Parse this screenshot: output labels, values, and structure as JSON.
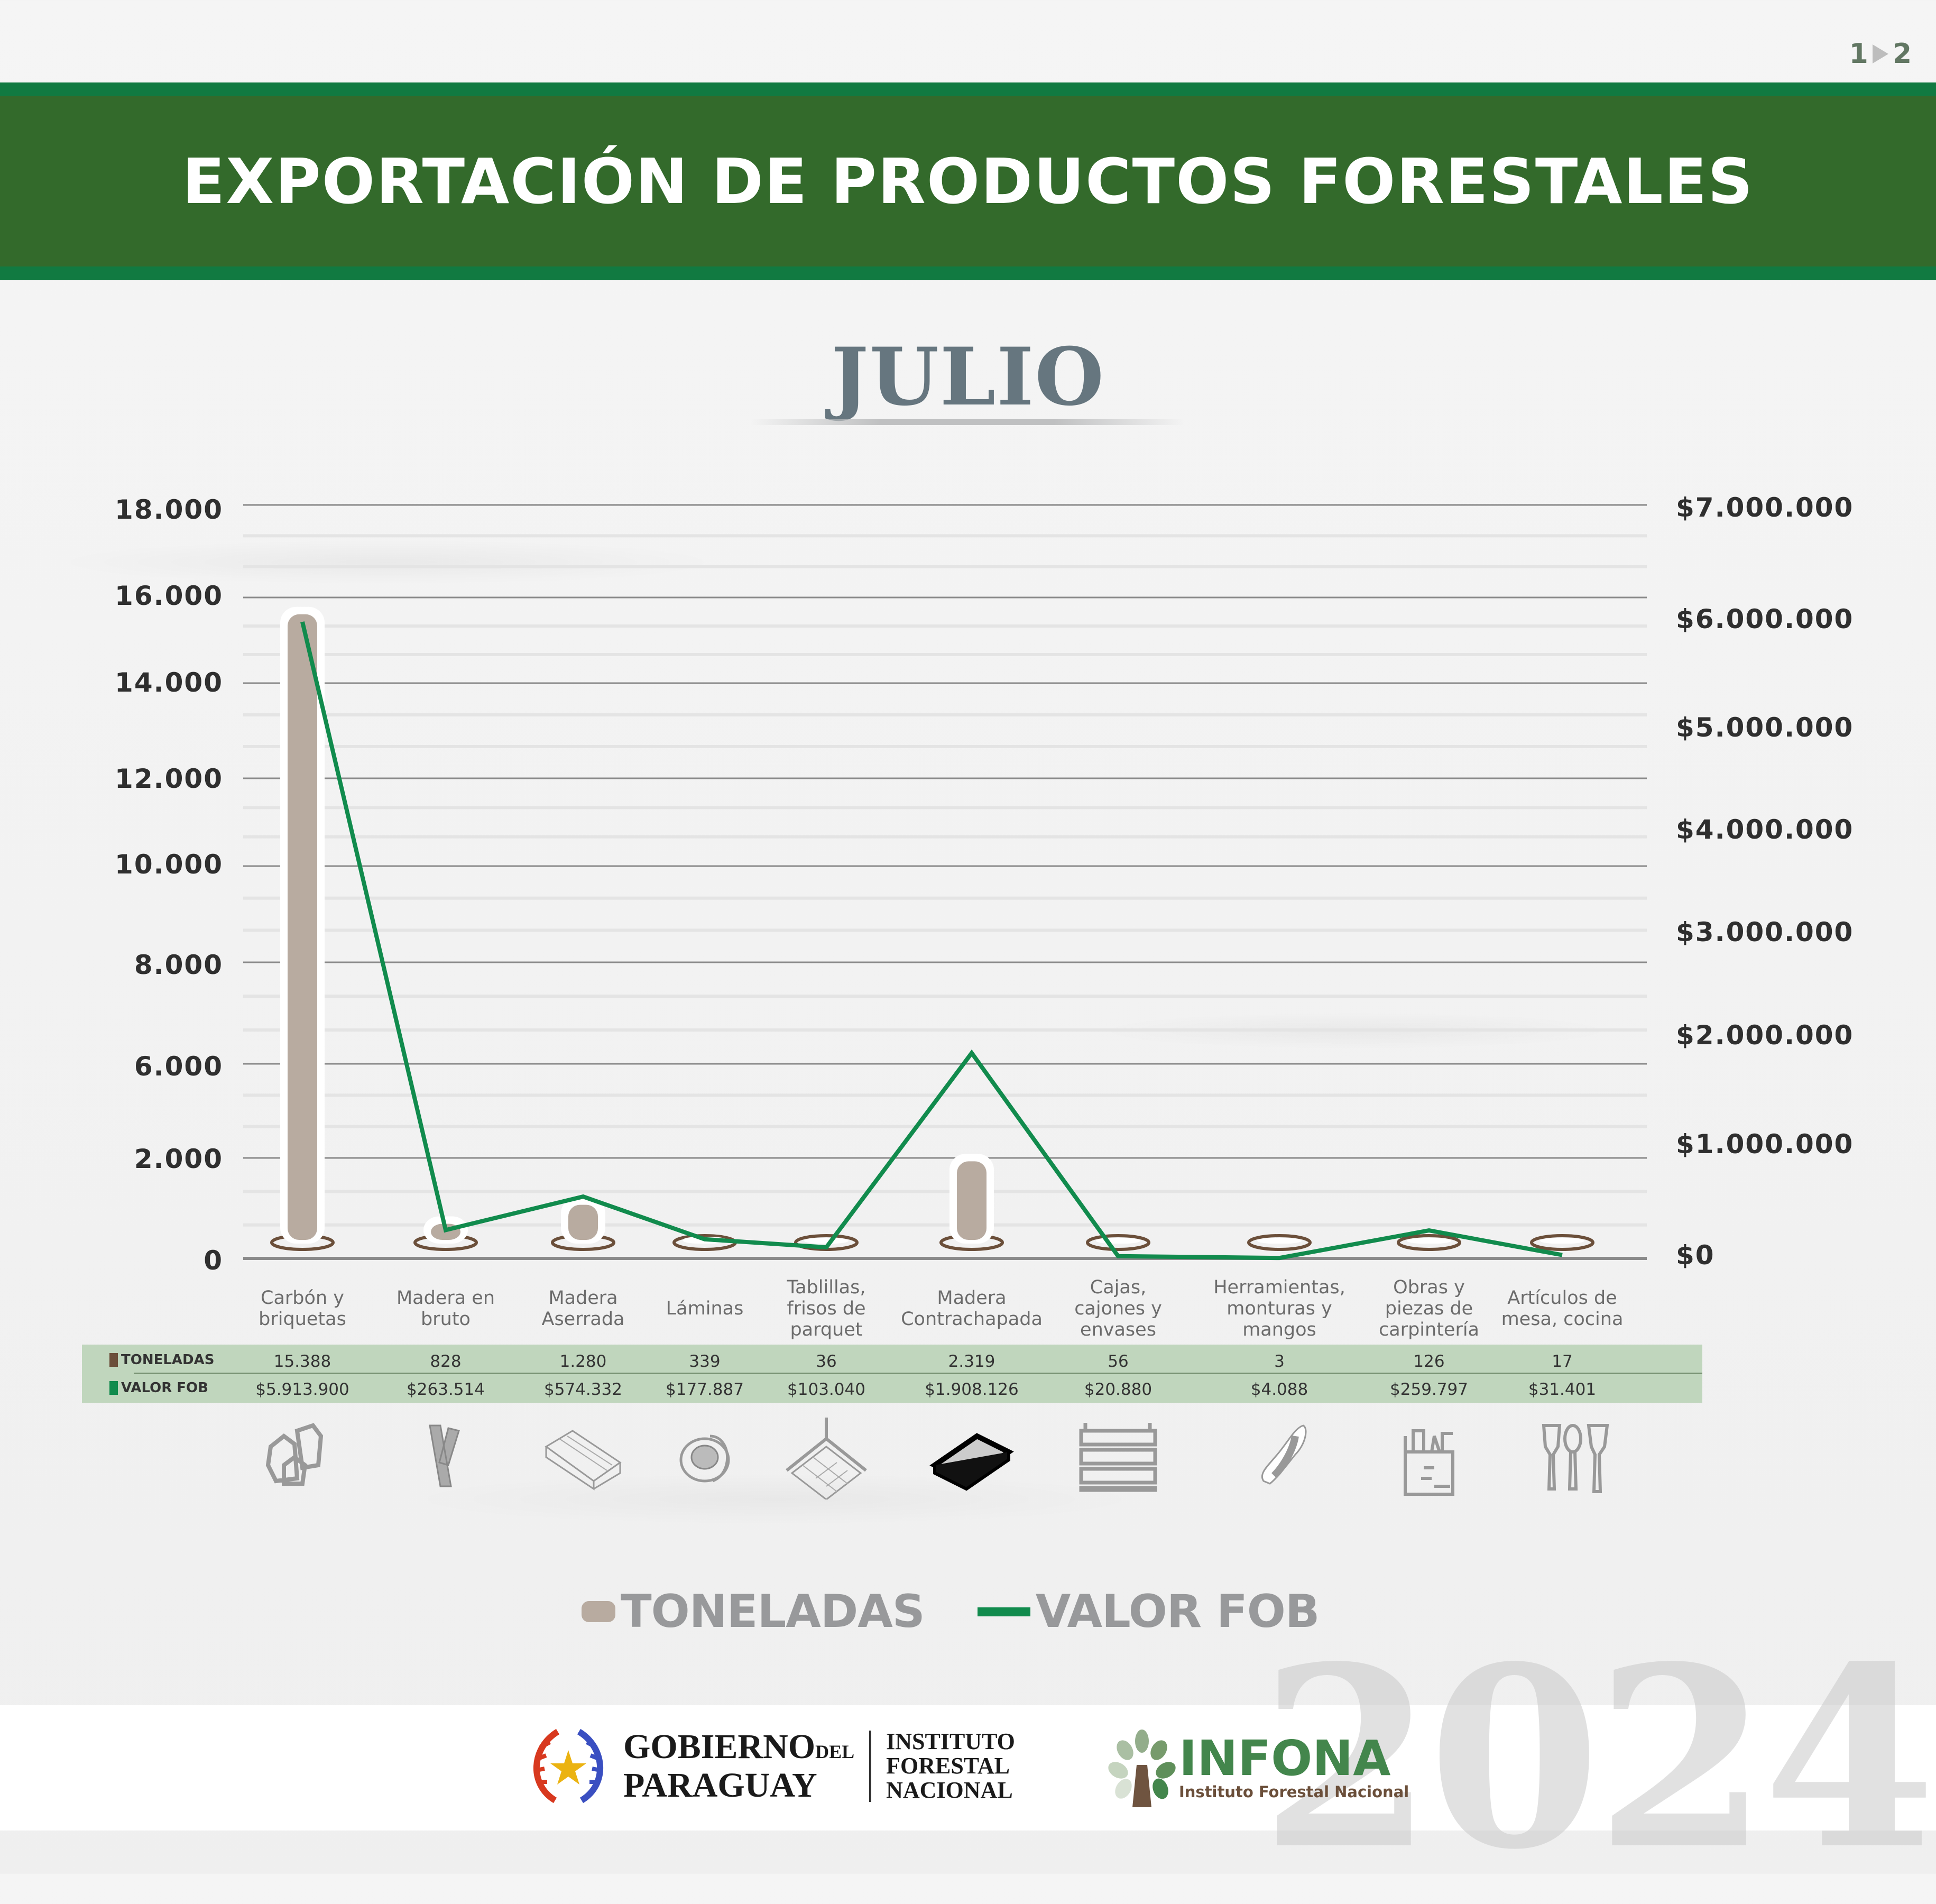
{
  "page": {
    "current": "1",
    "next": "2"
  },
  "header": {
    "title": "EXPORTACIÓN DE PRODUCTOS FORESTALES"
  },
  "month": "JULIO",
  "colors": {
    "banner": "#336a2b",
    "banner_edge": "#117a41",
    "bar": "#b8aba0",
    "bar_base": "#6b4f3a",
    "line": "#118b4d",
    "table_bg": "#c0d6bd"
  },
  "chart_data": {
    "type": "bar+line",
    "title": "EXPORTACIÓN DE PRODUCTOS FORESTALES — JULIO",
    "categories": [
      "Carbón y briquetas",
      "Madera en bruto",
      "Madera Aserrada",
      "Láminas",
      "Tablillas, frisos de parquet",
      "Madera Contrachapada",
      "Cajas, cajones y envases",
      "Herramientas, monturas y mangos",
      "Obras y piezas de carpintería",
      "Artículos de mesa, cocina"
    ],
    "series": [
      {
        "name": "TONELADAS",
        "type": "bar",
        "axis": "left",
        "values": [
          15388,
          828,
          1280,
          339,
          36,
          2319,
          56,
          3,
          126,
          17
        ]
      },
      {
        "name": "VALOR FOB",
        "type": "line",
        "axis": "right",
        "values": [
          5913900,
          263514,
          574332,
          177887,
          103040,
          1908126,
          20880,
          4088,
          259797,
          31401
        ]
      }
    ],
    "left_axis": {
      "ticks": [
        "18.000",
        "16.000",
        "14.000",
        "12.000",
        "10.000",
        "8.000",
        "6.000",
        "2.000",
        "0"
      ],
      "ylim": [
        0,
        18000
      ]
    },
    "right_axis": {
      "ticks": [
        "$7.000.000",
        "$6.000.000",
        "$5.000.000",
        "$4.000.000",
        "$3.000.000",
        "$2.000.000",
        "$1.000.000",
        "$0"
      ],
      "ylim": [
        0,
        7000000
      ]
    },
    "grid": true,
    "legend": [
      "TONELADAS",
      "VALOR FOB"
    ],
    "legend_position": "bottom"
  },
  "axis_left_labels": [
    {
      "text": "18.000",
      "y": 935
    },
    {
      "text": "16.000",
      "y": 1098
    },
    {
      "text": "14.000",
      "y": 1262
    },
    {
      "text": "12.000",
      "y": 1444
    },
    {
      "text": "10.000",
      "y": 1606
    },
    {
      "text": "8.000",
      "y": 1796
    },
    {
      "text": "6.000",
      "y": 1988
    },
    {
      "text": "2.000",
      "y": 2163
    },
    {
      "text": "0",
      "y": 2355
    }
  ],
  "axis_right_labels": [
    {
      "text": "$7.000.000",
      "y": 931
    },
    {
      "text": "$6.000.000",
      "y": 1142
    },
    {
      "text": "$5.000.000",
      "y": 1347
    },
    {
      "text": "$4.000.000",
      "y": 1540
    },
    {
      "text": "$3.000.000",
      "y": 1734
    },
    {
      "text": "$2.000.000",
      "y": 1929
    },
    {
      "text": "$1.000.000",
      "y": 2135
    },
    {
      "text": "$0",
      "y": 2345
    }
  ],
  "categories": [
    {
      "label": "Carbón y briquetas",
      "lines": [
        "Carbón y",
        "briquetas"
      ],
      "toneladas": "15.388",
      "fob": "$5.913.900",
      "icon": "charcoal-icon"
    },
    {
      "label": "Madera en bruto",
      "lines": [
        "Madera en",
        "bruto"
      ],
      "toneladas": "828",
      "fob": "$263.514",
      "icon": "raw-wood-icon"
    },
    {
      "label": "Madera Aserrada",
      "lines": [
        "Madera",
        "Aserrada"
      ],
      "toneladas": "1.280",
      "fob": "$574.332",
      "icon": "sawn-wood-icon"
    },
    {
      "label": "Láminas",
      "lines": [
        "Láminas"
      ],
      "toneladas": "339",
      "fob": "$177.887",
      "icon": "veneer-roll-icon"
    },
    {
      "label": "Tablillas, frisos de parquet",
      "lines": [
        "Tablillas,",
        "frisos de",
        "parquet"
      ],
      "toneladas": "36",
      "fob": "$103.040",
      "icon": "parquet-icon"
    },
    {
      "label": "Madera Contrachapada",
      "lines": [
        "Madera",
        "Contrachapada"
      ],
      "toneladas": "2.319",
      "fob": "$1.908.126",
      "icon": "plywood-icon"
    },
    {
      "label": "Cajas, cajones y envases",
      "lines": [
        "Cajas,",
        "cajones y",
        "envases"
      ],
      "toneladas": "56",
      "fob": "$20.880",
      "icon": "crate-icon"
    },
    {
      "label": "Herramientas, monturas y mangos",
      "lines": [
        "Herramientas,",
        "monturas y",
        "mangos"
      ],
      "toneladas": "3",
      "fob": "$4.088",
      "icon": "tool-handle-icon"
    },
    {
      "label": "Obras y piezas de carpintería",
      "lines": [
        "Obras y",
        "piezas de",
        "carpintería"
      ],
      "toneladas": "126",
      "fob": "$259.797",
      "icon": "toolbox-icon"
    },
    {
      "label": "Artículos de mesa, cocina",
      "lines": [
        "Artículos de",
        "mesa, cocina"
      ],
      "toneladas": "17",
      "fob": "$31.401",
      "icon": "kitchen-utensils-icon"
    }
  ],
  "table": {
    "row1_label": "TONELADAS",
    "row2_label": "VALOR FOB"
  },
  "legend": {
    "bar_label": "TONELADAS",
    "line_label": "VALOR FOB"
  },
  "footer": {
    "gov_line1": "GOBIERNO",
    "gov_del": "DEL",
    "gov_line2": "PARAGUAY",
    "inst_lines": [
      "INSTITUTO",
      "FORESTAL",
      "NACIONAL"
    ],
    "infona_name": "INFONA",
    "infona_sub": "Instituto Forestal Nacional",
    "year": "2024"
  }
}
